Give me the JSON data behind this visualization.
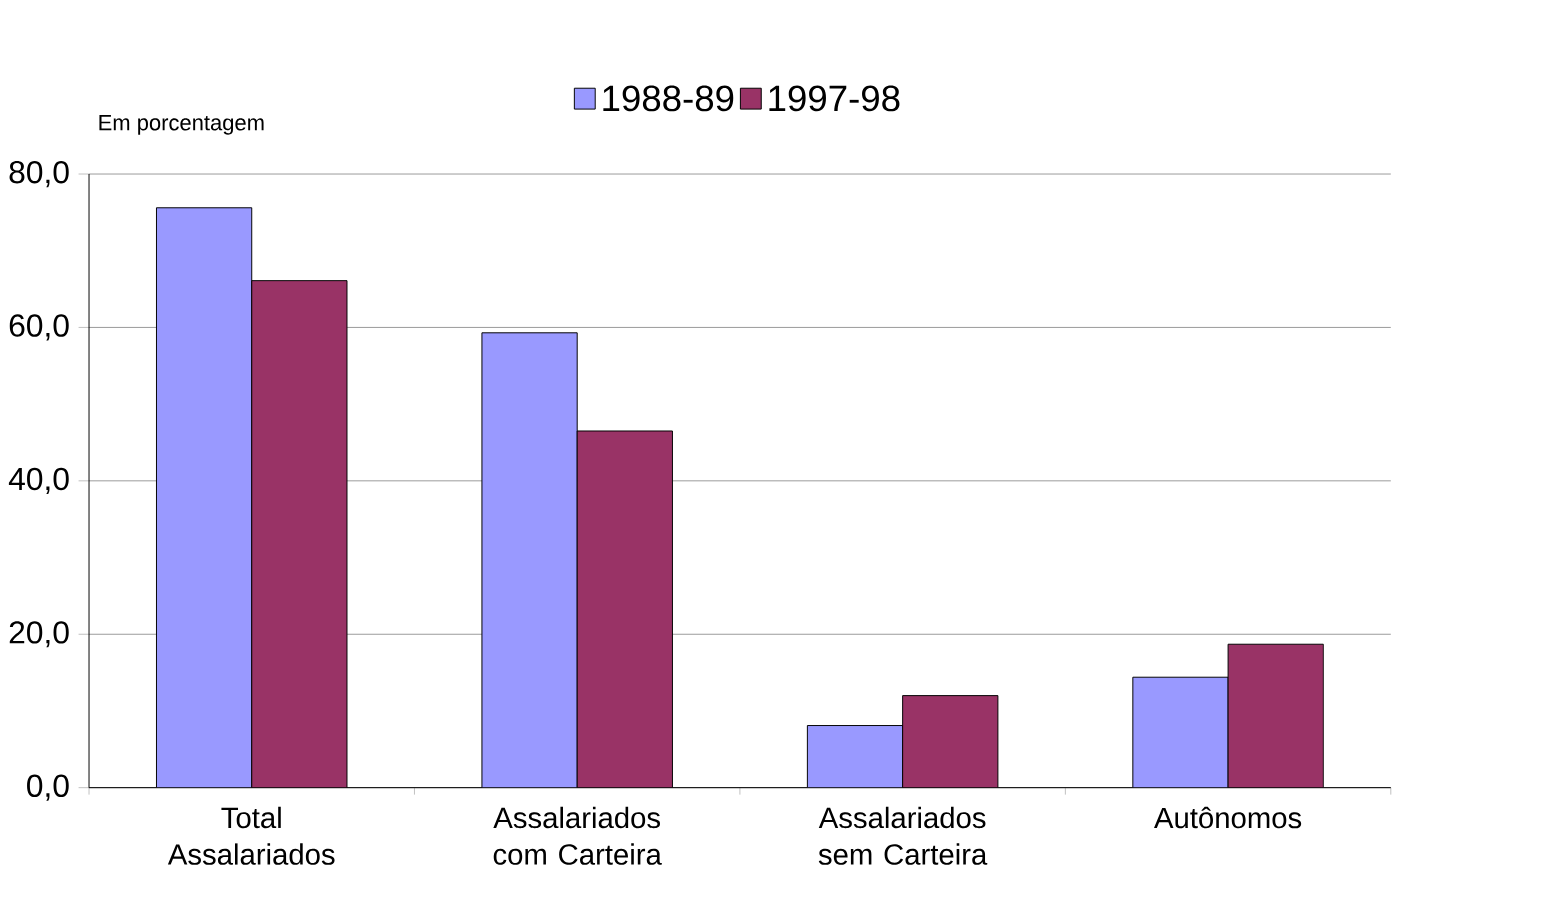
{
  "chart_data": {
    "type": "bar",
    "ylabel": "Em porcentagem",
    "categories": [
      "Total Assalariados",
      "Assalariados com Carteira",
      "Assalariados sem Carteira",
      "Autônomos"
    ],
    "series": [
      {
        "name": "1988-89",
        "color": "#9999ff",
        "values": [
          75.6,
          59.3,
          8.1,
          14.4
        ]
      },
      {
        "name": "1997-98",
        "color": "#993366",
        "values": [
          66.1,
          46.5,
          12.0,
          18.7
        ]
      }
    ],
    "ylim": [
      0,
      80
    ],
    "yticks": [
      {
        "value": 0,
        "label": "0,0"
      },
      {
        "value": 20,
        "label": "20,0"
      },
      {
        "value": 40,
        "label": "40,0"
      },
      {
        "value": 60,
        "label": "60,0"
      },
      {
        "value": 80,
        "label": "80,0"
      }
    ],
    "grid": "y",
    "legend": "top"
  }
}
